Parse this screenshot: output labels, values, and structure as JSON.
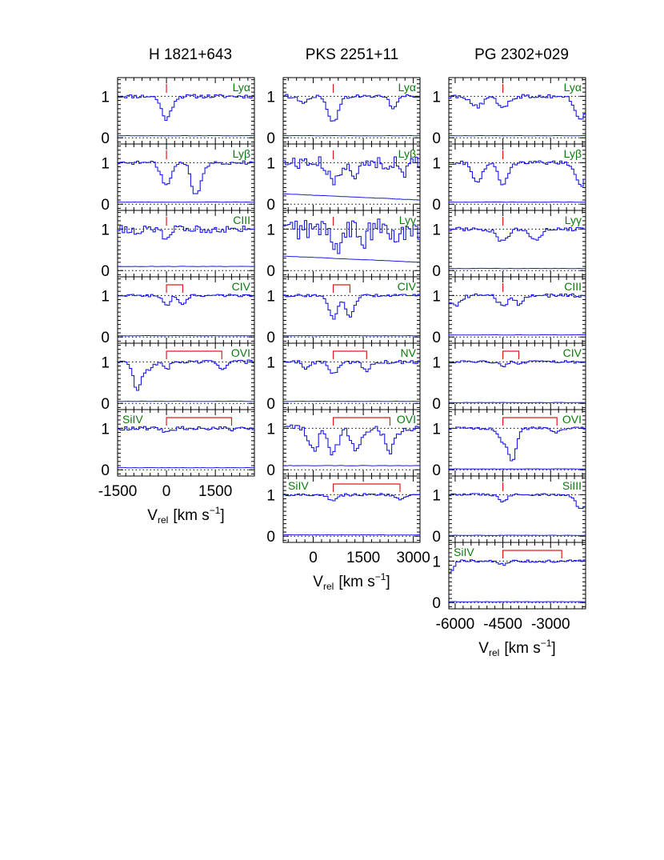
{
  "chart_data": [
    {
      "type": "line",
      "title": "H  1821+643",
      "xlabel_main": "V",
      "xlabel_sub": "rel",
      "xlabel_units": "[km  s",
      "xlabel_exp": "−1",
      "xlabel_close": "]",
      "xlim": [
        -1500,
        2700
      ],
      "xticks": [
        -1500,
        0,
        1500
      ],
      "xtick_labels": [
        "-1500",
        "0",
        "1500"
      ],
      "ylim": [
        -0.15,
        1.45
      ],
      "yticks": [
        0,
        1
      ],
      "ytick_labels": [
        "0",
        "1"
      ],
      "series_color": "#1a1ae6",
      "marker_color": "#e01a1a",
      "label_color": "#0c7a0c",
      "panels": [
        {
          "ion": "Lyα",
          "label_pos": "right",
          "markers": [
            0
          ],
          "error": 0.05,
          "absorptions": [
            [
              0,
              0.55,
              150
            ]
          ]
        },
        {
          "ion": "Lyβ",
          "label_pos": "right",
          "markers": [
            0
          ],
          "error": 0.05,
          "absorptions": [
            [
              0,
              0.55,
              150
            ],
            [
              950,
              0.65,
              150
            ],
            [
              820,
              0.25,
              80
            ]
          ]
        },
        {
          "ion": "CIII",
          "label_pos": "right",
          "markers": [
            0
          ],
          "error": 0.1,
          "absorptions": [
            [
              0,
              0.2,
              120
            ],
            [
              -900,
              0.15,
              100
            ]
          ]
        },
        {
          "ion": "CIV",
          "label_pos": "right",
          "markers": [
            0,
            500
          ],
          "error": 0.03,
          "absorptions": [
            [
              0,
              0.25,
              110
            ],
            [
              500,
              0.2,
              110
            ]
          ]
        },
        {
          "ion": "OVI",
          "label_pos": "right",
          "markers": [
            0,
            1700
          ],
          "error": 0.05,
          "absorptions": [
            [
              -900,
              0.65,
              120
            ],
            [
              -600,
              0.2,
              150
            ],
            [
              0,
              0.15,
              120
            ],
            [
              1700,
              0.15,
              120
            ]
          ]
        },
        {
          "ion": "SiIV",
          "label_pos": "left",
          "markers": [
            0,
            2000
          ],
          "error": 0.05,
          "absorptions": [
            [
              0,
              0.12,
              120
            ],
            [
              2000,
              0.08,
              100
            ]
          ]
        }
      ]
    },
    {
      "type": "line",
      "title": "PKS  2251+11",
      "xlabel_main": "V",
      "xlabel_sub": "rel",
      "xlabel_units": "[km  s",
      "xlabel_exp": "−1",
      "xlabel_close": "]",
      "xlim": [
        -900,
        3200
      ],
      "xticks": [
        0,
        1500,
        3000
      ],
      "xtick_labels": [
        "0",
        "1500",
        "3000"
      ],
      "ylim": [
        -0.15,
        1.45
      ],
      "yticks": [
        0,
        1
      ],
      "ytick_labels": [
        "0",
        "1"
      ],
      "series_color": "#1a1ae6",
      "marker_color": "#e01a1a",
      "label_color": "#0c7a0c",
      "panels": [
        {
          "ion": "Lyα",
          "label_pos": "right",
          "markers": [
            600
          ],
          "error": 0.05,
          "absorptions": [
            [
              600,
              0.6,
              160
            ],
            [
              -300,
              0.2,
              100
            ],
            [
              2400,
              0.3,
              100
            ]
          ]
        },
        {
          "ion": "Lyβ",
          "label_pos": "right",
          "markers": [
            600
          ],
          "error": [
            0.25,
            0.1
          ],
          "absorptions": [
            [
              600,
              0.5,
              150
            ],
            [
              1300,
              0.3,
              120
            ],
            [
              2700,
              0.3,
              100
            ]
          ]
        },
        {
          "ion": "Lyγ",
          "label_pos": "right",
          "markers": [
            600
          ],
          "error": [
            0.35,
            0.2
          ],
          "absorptions": [
            [
              700,
              0.4,
              150
            ],
            [
              1500,
              0.3,
              120
            ],
            [
              2500,
              0.3,
              120
            ]
          ]
        },
        {
          "ion": "CIV",
          "label_pos": "right",
          "markers": [
            600,
            1100
          ],
          "error": 0.03,
          "absorptions": [
            [
              600,
              0.55,
              130
            ],
            [
              1100,
              0.5,
              130
            ]
          ]
        },
        {
          "ion": "NV",
          "label_pos": "right",
          "markers": [
            600,
            1600
          ],
          "error": 0.05,
          "absorptions": [
            [
              600,
              0.3,
              120
            ],
            [
              1600,
              0.2,
              120
            ],
            [
              -200,
              0.15,
              100
            ]
          ]
        },
        {
          "ion": "OVI",
          "label_pos": "right",
          "markers": [
            600,
            2300
          ],
          "error": 0.1,
          "absorptions": [
            [
              0,
              0.55,
              140
            ],
            [
              600,
              0.6,
              140
            ],
            [
              1300,
              0.5,
              140
            ],
            [
              2300,
              0.55,
              140
            ]
          ]
        },
        {
          "ion": "SiIV",
          "label_pos": "left",
          "markers": [
            600,
            2600
          ],
          "error": 0.03,
          "absorptions": [
            [
              600,
              0.15,
              120
            ],
            [
              2600,
              0.1,
              120
            ]
          ]
        }
      ]
    },
    {
      "type": "line",
      "title": "PG  2302+029",
      "xlabel_main": "V",
      "xlabel_sub": "rel",
      "xlabel_units": "[km  s",
      "xlabel_exp": "−1",
      "xlabel_close": "]",
      "xlim": [
        -6200,
        -1900
      ],
      "xticks": [
        -6000,
        -4500,
        -3000
      ],
      "xtick_labels": [
        "-6000",
        "-4500",
        "-3000"
      ],
      "ylim": [
        -0.15,
        1.45
      ],
      "yticks": [
        0,
        1
      ],
      "ytick_labels": [
        "0",
        "1"
      ],
      "series_color": "#1a1ae6",
      "marker_color": "#e01a1a",
      "label_color": "#0c7a0c",
      "panels": [
        {
          "ion": "Lyα",
          "label_pos": "right",
          "markers": [
            -4500
          ],
          "error": 0.05,
          "absorptions": [
            [
              -4500,
              0.25,
              180
            ],
            [
              -5300,
              0.25,
              180
            ],
            [
              -2050,
              0.55,
              180
            ]
          ]
        },
        {
          "ion": "Lyβ",
          "label_pos": "right",
          "markers": [
            -4500
          ],
          "error": 0.05,
          "absorptions": [
            [
              -4500,
              0.5,
              150
            ],
            [
              -5300,
              0.45,
              150
            ],
            [
              -2050,
              0.55,
              150
            ]
          ]
        },
        {
          "ion": "Lyγ",
          "label_pos": "right",
          "markers": [
            -4500
          ],
          "error": 0.05,
          "absorptions": [
            [
              -4500,
              0.3,
              180
            ],
            [
              -3500,
              0.25,
              180
            ]
          ]
        },
        {
          "ion": "CIII",
          "label_pos": "right",
          "markers": [
            -4500
          ],
          "error": 0.05,
          "absorptions": [
            [
              -4500,
              0.25,
              150
            ],
            [
              -6000,
              0.25,
              150
            ],
            [
              -4000,
              0.2,
              120
            ]
          ]
        },
        {
          "ion": "CIV",
          "label_pos": "right",
          "markers": [
            -4500,
            -4000
          ],
          "error": 0.02,
          "absorptions": [
            [
              -4500,
              0.1,
              100
            ],
            [
              -4000,
              0.08,
              100
            ]
          ]
        },
        {
          "ion": "OVI",
          "label_pos": "right",
          "markers": [
            -4500,
            -2800
          ],
          "error": 0.02,
          "absorptions": [
            [
              -4200,
              0.75,
              130
            ],
            [
              -4500,
              0.3,
              130
            ],
            [
              -2800,
              0.1,
              120
            ]
          ]
        },
        {
          "ion": "SiIII",
          "label_pos": "right",
          "markers": [
            -4500
          ],
          "error": 0.02,
          "absorptions": [
            [
              -4500,
              0.15,
              130
            ],
            [
              -2050,
              0.35,
              150
            ]
          ]
        },
        {
          "ion": "SiIV",
          "label_pos": "left",
          "markers": [
            -4500,
            -2650
          ],
          "error": 0.02,
          "absorptions": [
            [
              -4500,
              0.08,
              120
            ],
            [
              -6150,
              0.25,
              100
            ]
          ]
        }
      ]
    }
  ]
}
